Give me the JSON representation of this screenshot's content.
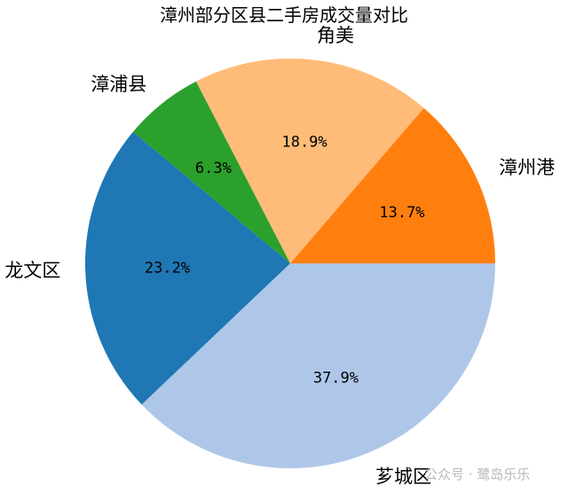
{
  "chart_data": {
    "type": "pie",
    "title": "漳州部分区县二手房成交量对比",
    "slices": [
      {
        "label": "芗城区",
        "value": 37.9,
        "pct_label": "37.9%",
        "color": "#aec7e8"
      },
      {
        "label": "漳州港",
        "value": 13.7,
        "pct_label": "13.7%",
        "color": "#ff7f0e"
      },
      {
        "label": "角美",
        "value": 18.9,
        "pct_label": "18.9%",
        "color": "#ffbb78"
      },
      {
        "label": "漳浦县",
        "value": 6.3,
        "pct_label": "6.3%",
        "color": "#2ca02c"
      },
      {
        "label": "龙文区",
        "value": 23.2,
        "pct_label": "23.2%",
        "color": "#1f77b4"
      }
    ]
  },
  "watermark": "公众号 · 鹭岛乐乐"
}
